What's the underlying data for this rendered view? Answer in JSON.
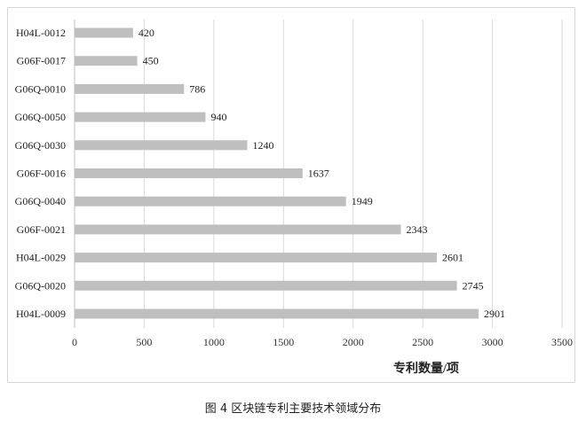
{
  "figure": {
    "caption": "图 4  区块链专利主要技术领域分布"
  },
  "chart_data": {
    "type": "bar",
    "orientation": "horizontal",
    "categories": [
      "H04L-0012",
      "G06F-0017",
      "G06Q-0010",
      "G06Q-0050",
      "G06Q-0030",
      "G06F-0016",
      "G06Q-0040",
      "G06F-0021",
      "H04L-0029",
      "G06Q-0020",
      "H04L-0009"
    ],
    "values": [
      420,
      450,
      786,
      940,
      1240,
      1637,
      1949,
      2343,
      2601,
      2745,
      2901
    ],
    "xlabel": "专利数量/项",
    "ylabel": "",
    "xlim": [
      0,
      3500
    ],
    "xticks": [
      0,
      500,
      1000,
      1500,
      2000,
      2500,
      3000,
      3500
    ],
    "grid": "vertical",
    "data_labels": true,
    "bar_color": "#bfbfbf",
    "grid_color": "#d9d9d9"
  }
}
